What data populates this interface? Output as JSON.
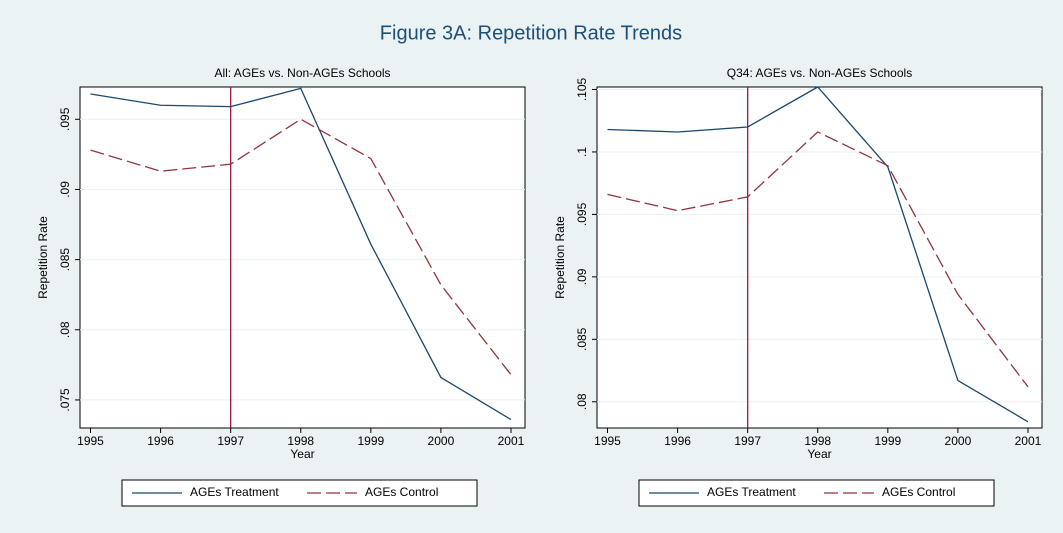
{
  "title": "Figure 3A: Repetition Rate Trends",
  "chart_data": [
    {
      "type": "line",
      "title": "All: AGEs vs. Non-AGEs Schools",
      "xlabel": "Year",
      "ylabel": "Repetition Rate",
      "x": [
        1995,
        1996,
        1997,
        1998,
        1999,
        2000,
        2001
      ],
      "series": [
        {
          "name": "AGEs Treatment",
          "color": "#1a476f",
          "dash": false,
          "values": [
            0.0968,
            0.096,
            0.0959,
            0.0972,
            0.0861,
            0.0766,
            0.0736
          ]
        },
        {
          "name": "AGEs Control",
          "color": "#90353b",
          "dash": true,
          "values": [
            0.0928,
            0.0913,
            0.0918,
            0.095,
            0.0922,
            0.0832,
            0.0768
          ]
        }
      ],
      "xlim": [
        1994.85,
        2001.2
      ],
      "ylim": [
        0.073,
        0.0973
      ],
      "xticks": [
        1995,
        1996,
        1997,
        1998,
        1999,
        2000,
        2001
      ],
      "yticks": [
        {
          "value": 0.075,
          "label": ".075"
        },
        {
          "value": 0.08,
          "label": ".08"
        },
        {
          "value": 0.085,
          "label": ".085"
        },
        {
          "value": 0.09,
          "label": ".09"
        },
        {
          "value": 0.095,
          "label": ".095"
        }
      ],
      "vline": 1997,
      "vline_color": "#a3143f",
      "grid": true,
      "legend": "bottom"
    },
    {
      "type": "line",
      "title": "Q34: AGEs vs. Non-AGEs Schools",
      "xlabel": "Year",
      "ylabel": "Repetition Rate",
      "x": [
        1995,
        1996,
        1997,
        1998,
        1999,
        2000,
        2001
      ],
      "series": [
        {
          "name": "AGEs Treatment",
          "color": "#1a476f",
          "dash": false,
          "values": [
            0.1018,
            0.1016,
            0.102,
            0.1052,
            0.0988,
            0.0817,
            0.0784
          ]
        },
        {
          "name": "AGEs Control",
          "color": "#90353b",
          "dash": true,
          "values": [
            0.0966,
            0.0953,
            0.0964,
            0.1016,
            0.0989,
            0.0886,
            0.0812
          ]
        }
      ],
      "xlim": [
        1994.85,
        2001.2
      ],
      "ylim": [
        0.0779,
        0.1052
      ],
      "xticks": [
        1995,
        1996,
        1997,
        1998,
        1999,
        2000,
        2001
      ],
      "yticks": [
        {
          "value": 0.08,
          "label": ".08"
        },
        {
          "value": 0.085,
          "label": ".085"
        },
        {
          "value": 0.09,
          "label": ".09"
        },
        {
          "value": 0.095,
          "label": ".095"
        },
        {
          "value": 0.1,
          "label": ".1"
        },
        {
          "value": 0.105,
          "label": ".105"
        }
      ],
      "vline": 1997,
      "vline_color": "#a3143f",
      "grid": true,
      "legend": "bottom"
    }
  ]
}
